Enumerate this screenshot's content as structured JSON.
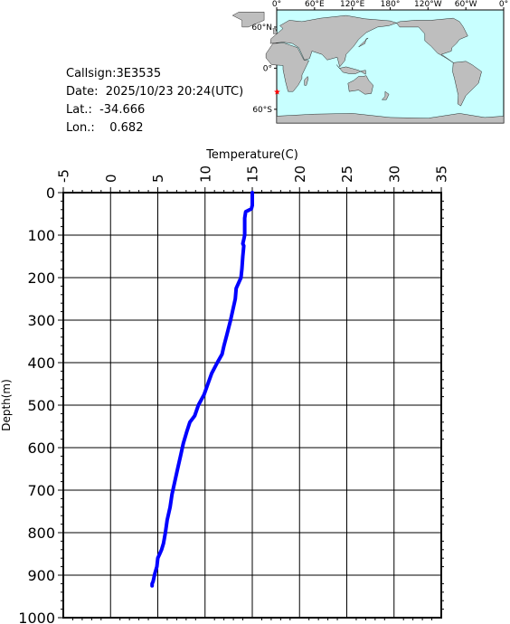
{
  "info": {
    "callsign": "Callsign:3E3535",
    "date": "Date:  2025/10/23 20:24(UTC)",
    "lat": "Lat.:  -34.666",
    "lon": "Lon.:    0.682"
  },
  "map": {
    "lon_labels": [
      "0°",
      "60°E",
      "120°E",
      "180°",
      "120°W",
      "60°W",
      "0°"
    ],
    "lat_labels": [
      "60°N",
      "0°",
      "60°S"
    ],
    "ocean_color": "#c8ffff",
    "land_color": "#bebebe",
    "marker_color": "#ff0000",
    "marker": {
      "lon": 0.682,
      "lat": -34.666
    }
  },
  "chart_data": {
    "type": "line",
    "xlabel": "Temperature(C)",
    "ylabel": "Depth(m)",
    "xlim": [
      -5,
      35
    ],
    "ylim": [
      0,
      1000
    ],
    "y_inverted": true,
    "x_ticks": [
      "-5",
      "0",
      "5",
      "10",
      "15",
      "20",
      "25",
      "30",
      "35"
    ],
    "y_ticks": [
      "0",
      "100",
      "200",
      "300",
      "400",
      "500",
      "600",
      "700",
      "800",
      "900",
      "1000"
    ],
    "grid": true,
    "line_color": "#0000ff",
    "series": [
      {
        "x": [
          15.0,
          15.0,
          14.9,
          14.3,
          14.2,
          14.2,
          14.1,
          14.0,
          14.1,
          14.0,
          13.9,
          13.8,
          13.3,
          13.2,
          12.7,
          12.3,
          12.0,
          11.8,
          11.3,
          10.7,
          10.3,
          9.9,
          9.3,
          8.9,
          8.4,
          8.1,
          7.7,
          7.4,
          7.1,
          6.8,
          6.5,
          6.3,
          6.0,
          5.8,
          5.6,
          5.4,
          5.2,
          5.0,
          4.9,
          4.7,
          4.6,
          4.5,
          4.4,
          4.4
        ],
        "y": [
          0,
          30,
          38,
          45,
          60,
          100,
          110,
          120,
          125,
          150,
          180,
          200,
          225,
          250,
          300,
          335,
          360,
          380,
          400,
          425,
          450,
          475,
          500,
          525,
          540,
          560,
          590,
          620,
          650,
          680,
          710,
          740,
          770,
          800,
          825,
          840,
          850,
          860,
          880,
          895,
          905,
          915,
          920,
          925
        ]
      }
    ]
  }
}
